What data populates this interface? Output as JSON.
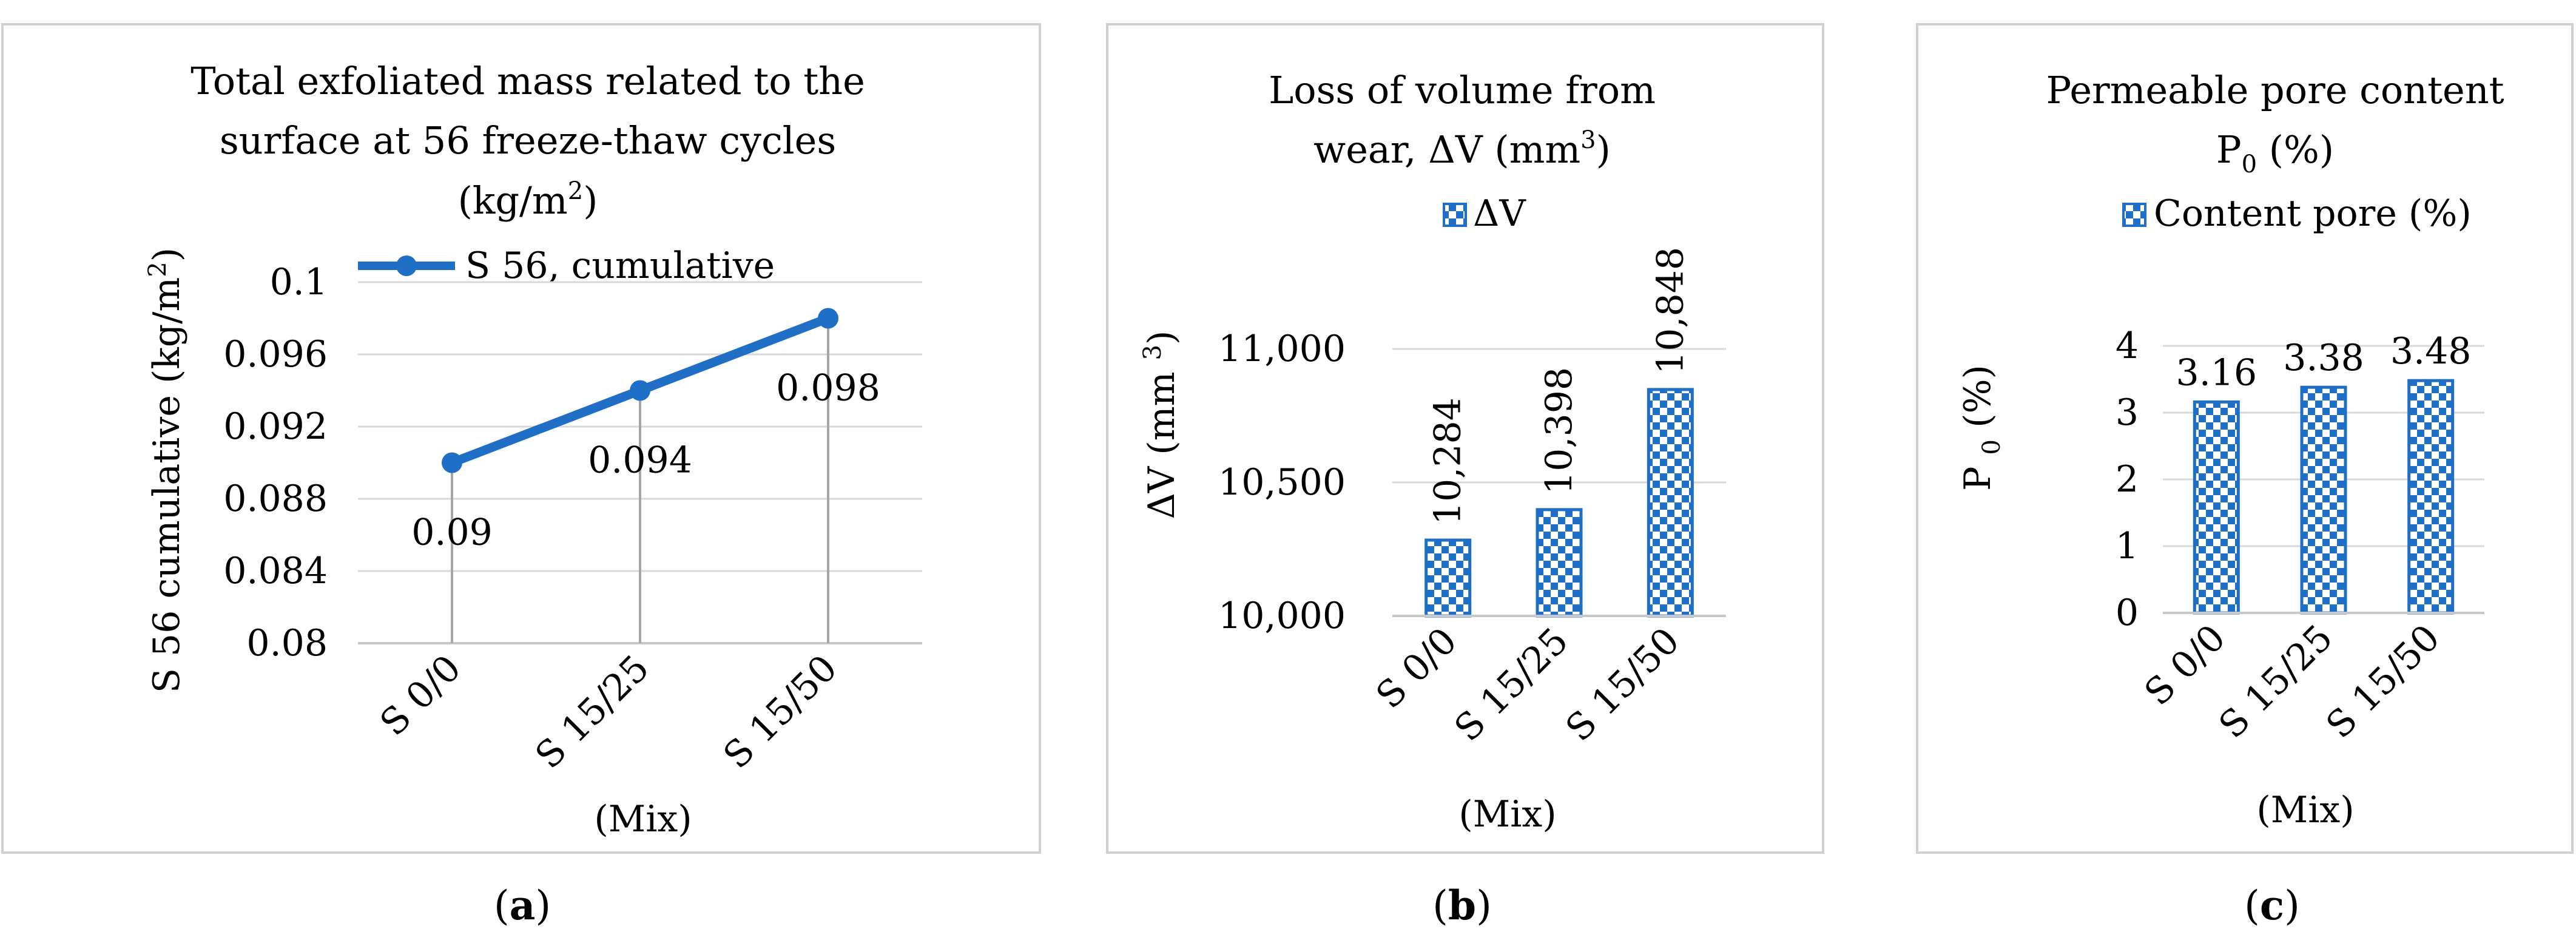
{
  "chart_data": [
    {
      "type": "line",
      "panel_label": "a",
      "title_lines": [
        "Total exfoliated mass related to the",
        "surface at 56 freeze-thaw cycles"
      ],
      "title_unit_pre": "(kg/m",
      "title_unit_sup": "2",
      "title_unit_post": ")",
      "legend": [
        "S 56, cumulative"
      ],
      "categories": [
        "S 0/0",
        "S 15/25",
        "S 15/50"
      ],
      "series": [
        {
          "name": "S 56, cumulative",
          "values": [
            0.09,
            0.094,
            0.098
          ]
        }
      ],
      "data_labels": [
        "0.09",
        "0.094",
        "0.098"
      ],
      "ylim": [
        0.08,
        0.1
      ],
      "yticks": [
        "0.08",
        "0.084",
        "0.088",
        "0.092",
        "0.096",
        "0.1"
      ],
      "ylabel_pre": "S 56 cumulative (kg/m",
      "ylabel_sup": "2",
      "ylabel_post": ")",
      "xlabel": "(Mix)",
      "color": "#1f6fc6"
    },
    {
      "type": "bar",
      "panel_label": "b",
      "title_lines": [
        "Loss of volume from"
      ],
      "title_unit_pre": "wear, ΔV (mm",
      "title_unit_sup": "3",
      "title_unit_post": ")",
      "legend": [
        "ΔV"
      ],
      "categories": [
        "S 0/0",
        "S 15/25",
        "S 15/50"
      ],
      "values": [
        10284,
        10398,
        10848
      ],
      "data_labels": [
        "10,284",
        "10,398",
        "10,848"
      ],
      "ylim": [
        10000,
        11000
      ],
      "yticks": [
        "10,000",
        "10,500",
        "11,000"
      ],
      "ylabel_pre": "ΔV (mm ",
      "ylabel_sup": "3",
      "ylabel_post": ")",
      "xlabel": "(Mix)",
      "color": "#1f6fc6"
    },
    {
      "type": "bar",
      "panel_label": "c",
      "title_lines": [
        "Permeable pore content"
      ],
      "title_unit_pre": "P",
      "title_unit_sub": "0",
      "title_unit_post": " (%)",
      "legend": [
        "Content pore (%)"
      ],
      "categories": [
        "S 0/0",
        "S 15/25",
        "S 15/50"
      ],
      "values": [
        3.16,
        3.38,
        3.48
      ],
      "data_labels": [
        "3.16",
        "3.38",
        "3.48"
      ],
      "ylim": [
        0,
        4
      ],
      "yticks": [
        "0",
        "1",
        "2",
        "3",
        "4"
      ],
      "ylabel_pre": "P ",
      "ylabel_sub": "0",
      "ylabel_post": " (%)",
      "xlabel": "(Mix)",
      "color": "#1f6fc6"
    }
  ]
}
